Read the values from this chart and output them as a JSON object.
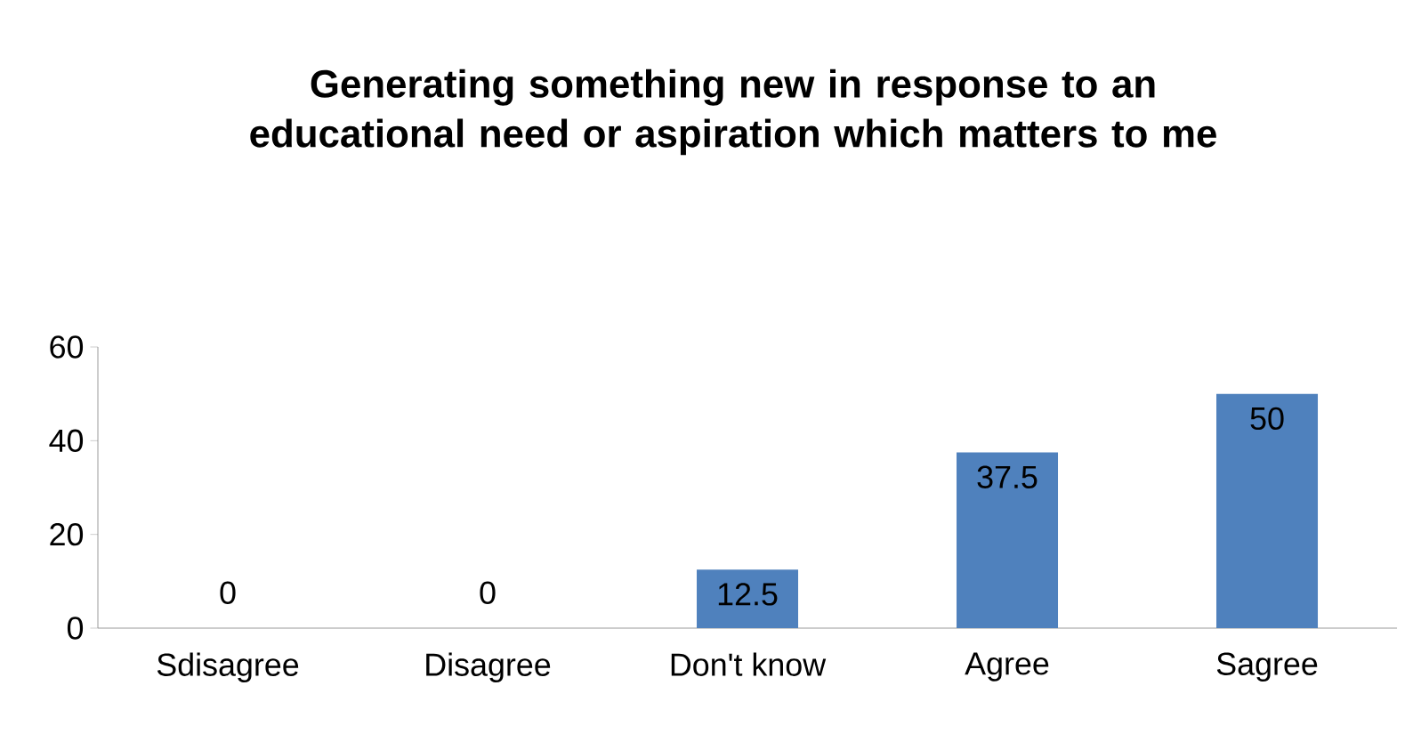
{
  "chart_data": {
    "type": "bar",
    "title": "Generating something new in response to an educational need or aspiration which matters to me",
    "categories": [
      "Sdisagree",
      "Disagree",
      "Don't know",
      "Agree",
      "Sagree"
    ],
    "values": [
      0,
      0,
      12.5,
      37.5,
      50
    ],
    "color": "#4f81bd",
    "ylim": [
      0,
      60
    ],
    "yticks": [
      0,
      20,
      40,
      60
    ],
    "data_labels": true
  }
}
